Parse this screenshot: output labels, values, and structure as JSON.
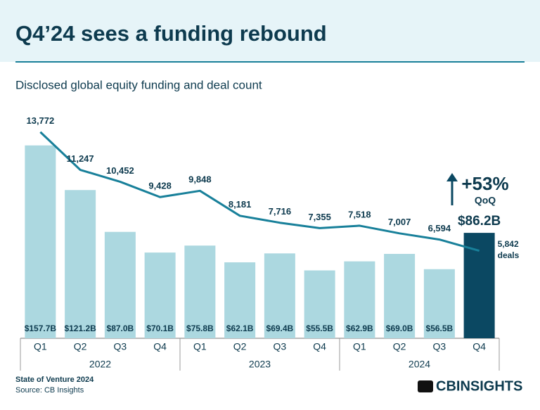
{
  "chart_data": {
    "type": "bar_line",
    "title": "Q4’24 sees a funding rebound",
    "subtitle": "Disclosed global equity funding and deal count",
    "categories": [
      "Q1",
      "Q2",
      "Q3",
      "Q4",
      "Q1",
      "Q2",
      "Q3",
      "Q4",
      "Q1",
      "Q2",
      "Q3",
      "Q4"
    ],
    "groups": [
      "2022",
      "2023",
      "2024"
    ],
    "series": [
      {
        "type": "bar",
        "colors": [
          "#acd8e0",
          "#acd8e0",
          "#acd8e0",
          "#acd8e0",
          "#acd8e0",
          "#acd8e0",
          "#acd8e0",
          "#acd8e0",
          "#acd8e0",
          "#acd8e0",
          "#acd8e0",
          "#0b4862"
        ],
        "values": [
          157.7,
          121.2,
          87.0,
          70.1,
          75.8,
          62.1,
          69.4,
          55.5,
          62.9,
          69.0,
          56.5,
          86.2
        ],
        "value_labels": [
          "$157.7B",
          "$121.2B",
          "$87.0B",
          "$70.1B",
          "$75.8B",
          "$62.1B",
          "$69.4B",
          "$55.5B",
          "$62.9B",
          "$69.0B",
          "$56.5B",
          "$86.2B"
        ]
      },
      {
        "type": "line",
        "axis": "y2",
        "color": "#18809a",
        "values": [
          13772,
          11247,
          10452,
          9428,
          9848,
          8181,
          7716,
          7355,
          7518,
          7007,
          6594,
          5842
        ],
        "value_labels": [
          "13,772",
          "11,247",
          "10,452",
          "9,428",
          "9,848",
          "8,181",
          "7,716",
          "7,355",
          "7,518",
          "7,007",
          "6,594",
          "5,842"
        ]
      }
    ],
    "ylim": [
      0,
      180
    ],
    "y2lim": [
      0,
      14700
    ],
    "annotations": {
      "change": "+53%",
      "change_label": "QoQ",
      "unit": "deals"
    },
    "footer": {
      "report": "State of Venture 2024",
      "source": "Source: CB Insights",
      "logo": "CBINSIGHTS"
    }
  }
}
